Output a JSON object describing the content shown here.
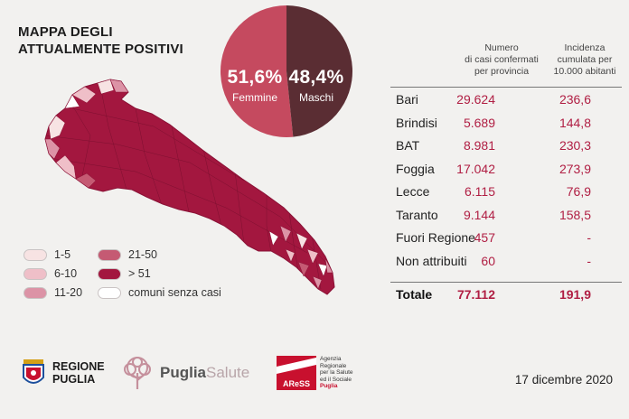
{
  "title": {
    "line1": "MAPPA DEGLI",
    "line2": "ATTUALMENTE POSITIVI"
  },
  "colors": {
    "crimson": "#a3173f",
    "pie_female": "#c54a5f",
    "pie_male": "#5a2d33",
    "accent_text": "#b01e43",
    "bg": "#f2f1ef"
  },
  "legend": [
    {
      "label": "1-5",
      "color": "#f7e3e3"
    },
    {
      "label": "6-10",
      "color": "#efbfc8"
    },
    {
      "label": "11-20",
      "color": "#dc93a6"
    },
    {
      "label": "21-50",
      "color": "#c55a73"
    },
    {
      "label": "> 51",
      "color": "#a3173f"
    },
    {
      "label": "comuni senza casi",
      "color": "#ffffff"
    }
  ],
  "gender": {
    "female_pct": "51,6%",
    "female_label": "Femmine",
    "female_value": 51.6,
    "male_pct": "48,4%",
    "male_label": "Maschi",
    "male_value": 48.4
  },
  "table": {
    "col_cases": [
      "Numero",
      "di casi confermati",
      "per provincia"
    ],
    "col_incidence": [
      "Incidenza",
      "cumulata per",
      "10.000 abitanti"
    ],
    "rows": [
      {
        "name": "Bari",
        "cases": "29.624",
        "incidence": "236,6"
      },
      {
        "name": "Brindisi",
        "cases": "5.689",
        "incidence": "144,8"
      },
      {
        "name": "BAT",
        "cases": "8.981",
        "incidence": "230,3"
      },
      {
        "name": "Foggia",
        "cases": "17.042",
        "incidence": "273,9"
      },
      {
        "name": "Lecce",
        "cases": "6.115",
        "incidence": "76,9"
      },
      {
        "name": "Taranto",
        "cases": "9.144",
        "incidence": "158,5"
      },
      {
        "name": "Fuori Regione",
        "cases": "457",
        "incidence": "-"
      },
      {
        "name": "Non attribuiti",
        "cases": "60",
        "incidence": "-"
      }
    ],
    "total": {
      "name": "Totale",
      "cases": "77.112",
      "incidence": "191,9"
    }
  },
  "footer": {
    "regione_line1": "REGIONE",
    "regione_line2": "PUGLIA",
    "puglia_bold": "Puglia",
    "puglia_light": "Salute",
    "aress_badge": "AReSS",
    "aress_line1": "Agenzia",
    "aress_line2": "Regionale",
    "aress_line3": "per la Salute",
    "aress_line4": "ed il Sociale",
    "aress_line5": "Puglia",
    "date": "17 dicembre 2020"
  }
}
